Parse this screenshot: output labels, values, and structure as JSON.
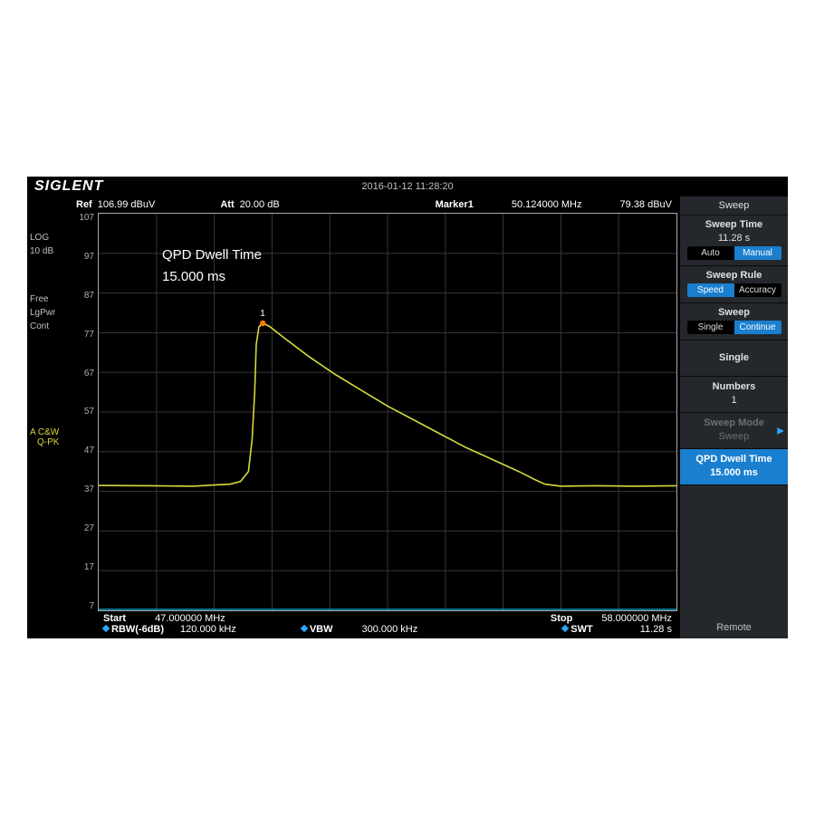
{
  "brand": "SIGLENT",
  "timestamp": "2016-01-12   11:28:20",
  "left": {
    "scale_mode": "LOG",
    "scale_value": "10 dB",
    "free": "Free",
    "lgpwr": "LgPwr",
    "cont": "Cont",
    "trace_a_label": "A",
    "trace_a_mode": "C&W",
    "trace_a_det": "Q-PK"
  },
  "top_info": {
    "ref_label": "Ref",
    "ref_value": "106.99 dBuV",
    "att_label": "Att",
    "att_value": "20.00 dB",
    "marker_label": "Marker1",
    "marker_freq": "50.124000 MHz",
    "marker_amp": "79.38 dBuV"
  },
  "overlay": {
    "line1": "QPD Dwell Time",
    "line2": "15.000 ms"
  },
  "chart": {
    "type": "line",
    "title_fontsize": 15,
    "trace_color": "#d8d83a",
    "grid_color": "#333333",
    "border_color": "#aaaaaa",
    "background_color": "#000000",
    "sweep_line_color": "#00c8ff",
    "marker_color": "#ff7a00",
    "x_start_mhz": 47.0,
    "x_stop_mhz": 58.0,
    "ylim": [
      7,
      107
    ],
    "ytick_step": 10,
    "y_ticks": [
      107,
      97,
      87,
      77,
      67,
      57,
      47,
      37,
      27,
      17,
      7
    ],
    "grid_divisions_x": 10,
    "grid_divisions_y": 10,
    "marker": {
      "id": "1",
      "x_mhz": 50.124,
      "y_dbuv": 79.38
    },
    "trace_points": [
      [
        47.0,
        38.5
      ],
      [
        48.0,
        38.4
      ],
      [
        48.8,
        38.3
      ],
      [
        49.2,
        38.6
      ],
      [
        49.5,
        38.8
      ],
      [
        49.7,
        39.5
      ],
      [
        49.85,
        42.0
      ],
      [
        49.92,
        50.0
      ],
      [
        49.97,
        62.0
      ],
      [
        50.0,
        74.0
      ],
      [
        50.05,
        78.5
      ],
      [
        50.124,
        79.4
      ],
      [
        50.25,
        78.6
      ],
      [
        50.5,
        76.0
      ],
      [
        51.0,
        71.0
      ],
      [
        51.5,
        66.5
      ],
      [
        52.0,
        62.5
      ],
      [
        52.5,
        58.5
      ],
      [
        53.0,
        55.0
      ],
      [
        53.5,
        51.5
      ],
      [
        54.0,
        48.0
      ],
      [
        54.5,
        45.0
      ],
      [
        55.0,
        42.0
      ],
      [
        55.3,
        40.0
      ],
      [
        55.5,
        38.8
      ],
      [
        55.8,
        38.3
      ],
      [
        56.5,
        38.4
      ],
      [
        57.2,
        38.3
      ],
      [
        58.0,
        38.4
      ]
    ]
  },
  "bottom": {
    "start_label": "Start",
    "start_value": "47.000000 MHz",
    "stop_label": "Stop",
    "stop_value": "58.000000 MHz",
    "rbw_label": "RBW(-6dB)",
    "rbw_value": "120.000 kHz",
    "vbw_label": "VBW",
    "vbw_value": "300.000 kHz",
    "swt_label": "SWT",
    "swt_value": "11.28 s"
  },
  "menu": {
    "title": "Sweep",
    "sweep_time": {
      "label": "Sweep Time",
      "value": "11.28 s",
      "opt_a": "Auto",
      "opt_b": "Manual",
      "sel": "b"
    },
    "sweep_rule": {
      "label": "Sweep Rule",
      "opt_a": "Speed",
      "opt_b": "Accuracy",
      "sel": "a"
    },
    "sweep": {
      "label": "Sweep",
      "opt_a": "Single",
      "opt_b": "Continue",
      "sel": "b"
    },
    "single": {
      "label": "Single"
    },
    "numbers": {
      "label": "Numbers",
      "value": "1"
    },
    "sweep_mode": {
      "label": "Sweep Mode",
      "value": "Sweep"
    },
    "qpd": {
      "label": "QPD Dwell Time",
      "value": "15.000 ms"
    },
    "footer": "Remote"
  },
  "colors": {
    "accent": "#1a7fcf",
    "diamond": "#2aa8ff",
    "text": "#c0c0c0",
    "panel": "#24282c"
  }
}
